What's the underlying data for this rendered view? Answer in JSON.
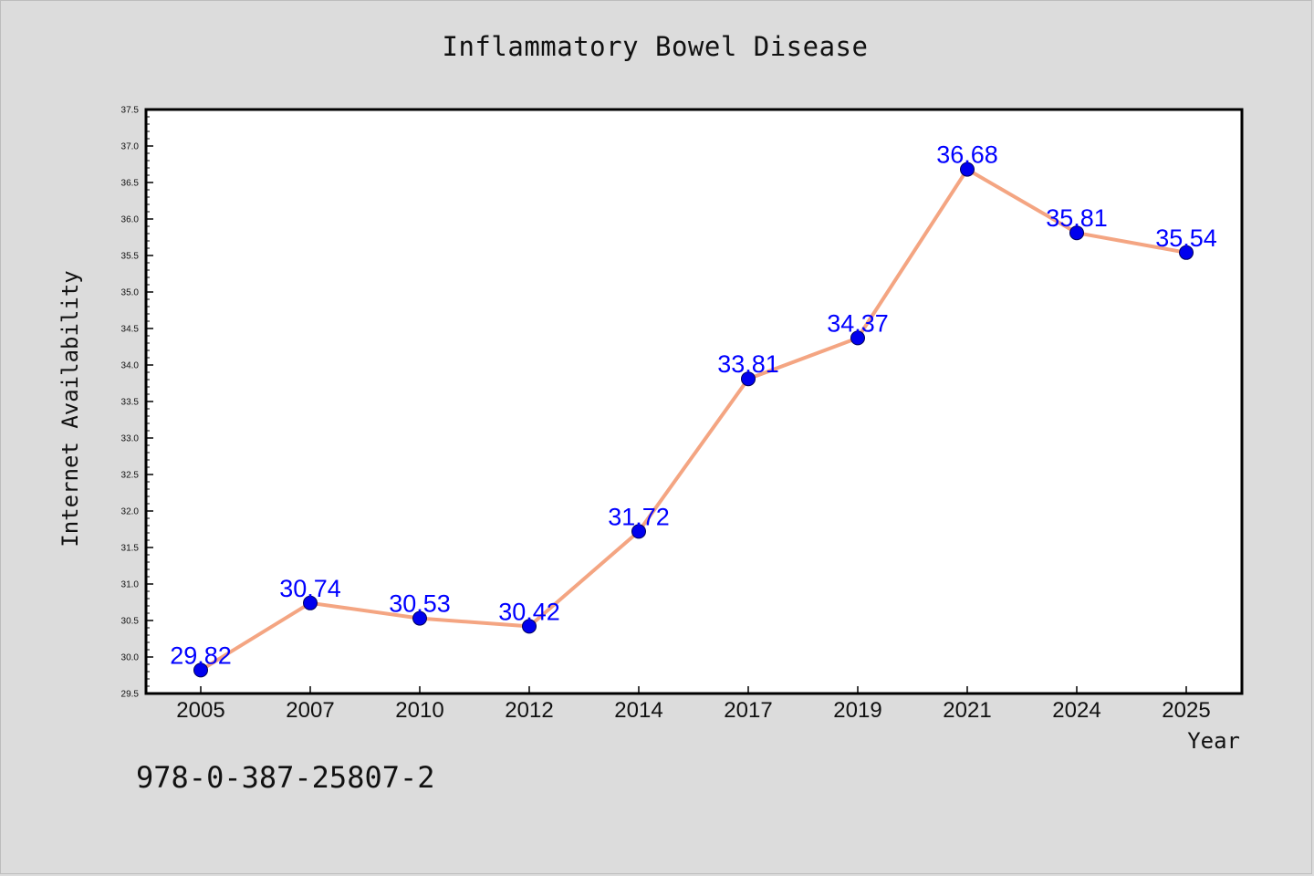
{
  "chart_data": {
    "type": "line",
    "title": "Inflammatory Bowel Disease",
    "xlabel": "Year",
    "ylabel": "Internet Availability",
    "categories": [
      "2005",
      "2007",
      "2010",
      "2012",
      "2014",
      "2017",
      "2019",
      "2021",
      "2024",
      "2025"
    ],
    "series": [
      {
        "values": [
          29.82,
          30.74,
          30.53,
          30.42,
          31.72,
          33.81,
          34.37,
          36.68,
          35.81,
          35.54
        ],
        "labels": [
          "29.82",
          "30.74",
          "30.53",
          "30.42",
          "31.72",
          "33.81",
          "34.37",
          "36.68",
          "35.81",
          "35.54"
        ],
        "line_color": "#f4a582",
        "marker_color": "#0000ee",
        "label_color": "#0000ff"
      }
    ],
    "ylim": [
      29.5,
      37.5
    ],
    "yticks": [
      "29.5",
      "30.0",
      "30.5",
      "31.0",
      "31.5",
      "32.0",
      "32.5",
      "33.0",
      "33.5",
      "34.0",
      "34.5",
      "35.0",
      "35.5",
      "36.0",
      "36.5",
      "37.0",
      "37.5"
    ],
    "grid": false,
    "legend": "none"
  },
  "annotation": {
    "isbn": "978-0-387-25807-2"
  }
}
